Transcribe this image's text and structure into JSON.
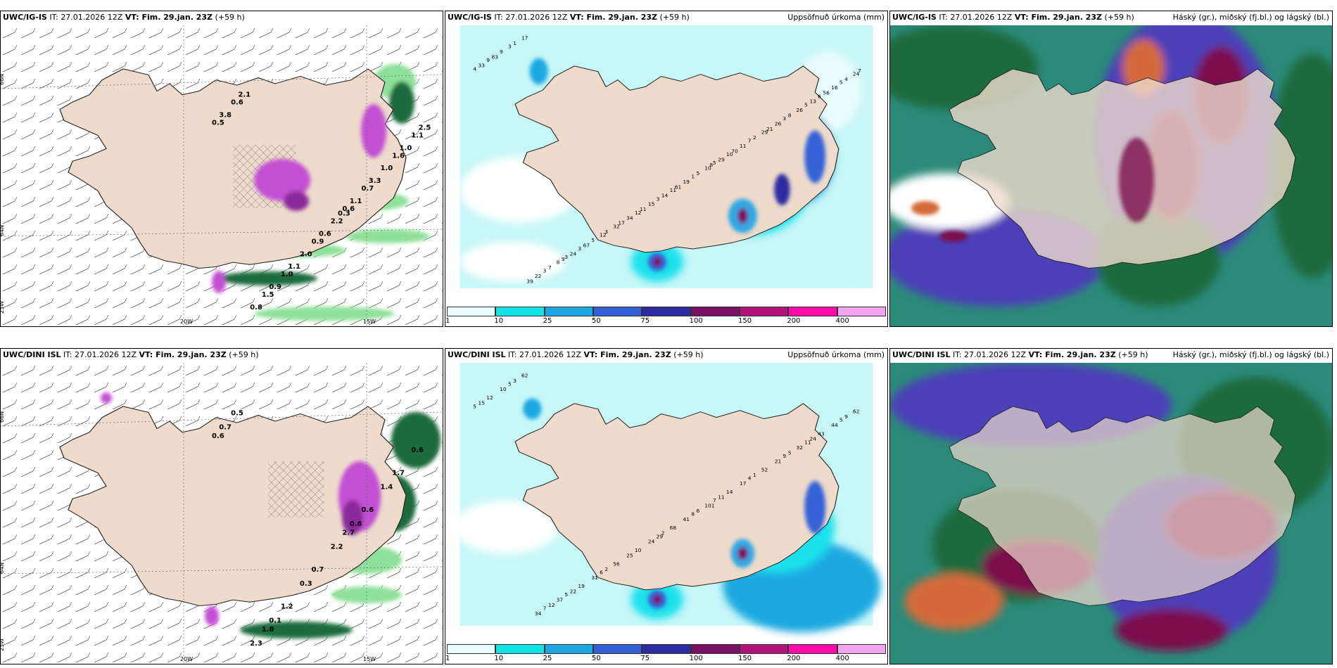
{
  "rows": [
    {
      "model": "UWC/IG-IS",
      "init": " IT: 27.01.2026 12Z ",
      "vt_label": "VT: Fim. 29.jan. 23Z",
      "lead": " (+59 h)",
      "wind_labels": [
        "0.5",
        "0.6",
        "1.5",
        "1.6",
        "0.9",
        "0.6",
        "0.7",
        "1.0",
        "1.1",
        "2.2",
        "0.8",
        "1.0",
        "2.0",
        "3.8",
        "1.1",
        "0.9",
        "1.0",
        "0.6",
        "2.1",
        "3.3",
        "1.1",
        "2.5",
        "0.3"
      ],
      "lat_labels": [
        "66N",
        "64N",
        "25W"
      ],
      "lon_labels": [
        "20W",
        "15W"
      ],
      "precip_numbers": [
        "4",
        "5",
        "3",
        "5",
        "3",
        "3",
        "7",
        "12",
        "5",
        "1",
        "3",
        "3",
        "12",
        "9",
        "10",
        "3",
        "6",
        "11",
        "17",
        "29",
        "32",
        "24",
        "10",
        "8",
        "26",
        "15",
        "9",
        "11",
        "5",
        "16",
        "19",
        "22",
        "26",
        "34",
        "33",
        "29",
        "24",
        "13",
        "14",
        "1",
        "2",
        "3",
        "4",
        "5",
        "7",
        "8",
        "11",
        "83",
        "70",
        "67",
        "56",
        "61",
        "39",
        "21",
        "17",
        "7",
        "8",
        "9"
      ]
    },
    {
      "model": "UWC/DINI ISL",
      "init": " IT: 27.01.2026 12Z ",
      "vt_label": "VT: Fim. 29.jan. 23Z",
      "lead": " (+59 h)",
      "wind_labels": [
        "0.6",
        "2.7",
        "1.8",
        "1.7",
        "0.7",
        "0.5",
        "0.6",
        "1.2",
        "0.6",
        "2.2",
        "2.3",
        "1.4",
        "0.3",
        "0.7",
        "0.6",
        "0.1"
      ],
      "lat_labels": [
        "66N",
        "64N",
        "25W"
      ],
      "lon_labels": [
        "20W",
        "15W"
      ],
      "precip_numbers": [
        "5",
        "7",
        "5",
        "11",
        "29",
        "5",
        "4",
        "6",
        "5",
        "8",
        "7",
        "9",
        "10",
        "12",
        "14",
        "19",
        "43",
        "68",
        "62",
        "52",
        "56",
        "62",
        "101",
        "37",
        "32",
        "24",
        "10",
        "17",
        "31",
        "44",
        "41",
        "34",
        "21",
        "25",
        "15",
        "11",
        "22",
        "24",
        "2",
        "3",
        "1",
        "2",
        "9",
        "6",
        "12",
        "5"
      ]
    }
  ],
  "precip_title": "Uppsöfnuð úrkoma (mm)",
  "cloud_title": "Háský (gr.), miðský (fj.bl.) og lágský (bl.)",
  "colorbar": {
    "ticks": [
      "1",
      "10",
      "25",
      "50",
      "75",
      "100",
      "150",
      "200",
      "400"
    ],
    "colors": [
      "#e9fbfb",
      "#11e3e6",
      "#1aa9e0",
      "#3462d6",
      "#2e2ba0",
      "#7a1062",
      "#b2127a",
      "#ff0ba8",
      "#f3a6ef"
    ]
  },
  "colors": {
    "land": "#eedbcc",
    "sea_precip": "#c8f7f8",
    "cyan": "#1ce1ec",
    "mid_blue": "#33a8e4",
    "purple": "#c34fd3",
    "green_dark": "#1f6b3c",
    "green_light": "#8fe09a",
    "magenta_dark": "#7c0e4e",
    "orange": "#d46a3a",
    "indigo": "#4b3fb7",
    "teal": "#2b8a7a"
  }
}
